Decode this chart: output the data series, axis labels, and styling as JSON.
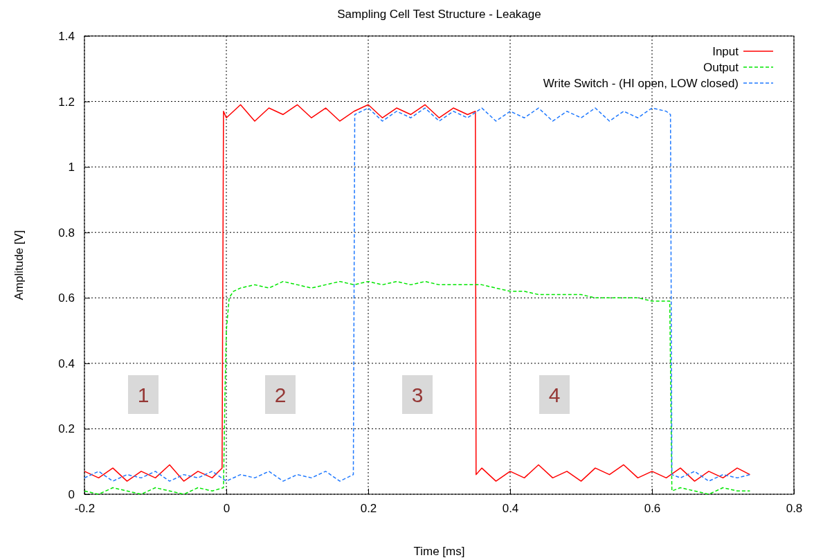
{
  "chart_data": {
    "type": "line",
    "title": "Sampling Cell Test Structure - Leakage",
    "xlabel": "Time [ms]",
    "ylabel": "Amplitude [V]",
    "xlim": [
      -0.2,
      0.8
    ],
    "xticks": [
      -0.2,
      0,
      0.2,
      0.4,
      0.6,
      0.8
    ],
    "ylim": [
      0,
      1.4
    ],
    "yticks": [
      0,
      0.2,
      0.4,
      0.6,
      0.8,
      1,
      1.2,
      1.4
    ],
    "grid": true,
    "legend": "top right",
    "marker": "none",
    "series": [
      {
        "name": "Input",
        "color": "#ff0000",
        "line_style": "solid",
        "x": [
          -0.2,
          -0.18,
          -0.16,
          -0.14,
          -0.12,
          -0.1,
          -0.08,
          -0.06,
          -0.04,
          -0.02,
          -0.006,
          -0.004,
          0,
          0.02,
          0.04,
          0.06,
          0.08,
          0.1,
          0.12,
          0.14,
          0.16,
          0.18,
          0.2,
          0.22,
          0.24,
          0.26,
          0.28,
          0.3,
          0.32,
          0.34,
          0.351,
          0.352,
          0.36,
          0.38,
          0.4,
          0.42,
          0.44,
          0.46,
          0.48,
          0.5,
          0.52,
          0.54,
          0.56,
          0.58,
          0.6,
          0.62,
          0.64,
          0.66,
          0.68,
          0.7,
          0.72,
          0.738
        ],
        "values": [
          0.07,
          0.05,
          0.08,
          0.04,
          0.07,
          0.05,
          0.09,
          0.04,
          0.07,
          0.05,
          0.08,
          1.17,
          1.15,
          1.19,
          1.14,
          1.18,
          1.16,
          1.19,
          1.15,
          1.18,
          1.14,
          1.17,
          1.19,
          1.15,
          1.18,
          1.16,
          1.19,
          1.15,
          1.18,
          1.16,
          1.17,
          0.06,
          0.08,
          0.04,
          0.07,
          0.05,
          0.09,
          0.05,
          0.07,
          0.04,
          0.08,
          0.06,
          0.09,
          0.05,
          0.07,
          0.05,
          0.08,
          0.04,
          0.07,
          0.05,
          0.08,
          0.06
        ]
      },
      {
        "name": "Output",
        "color": "#00e600",
        "line_style": "dashed",
        "x": [
          -0.2,
          -0.18,
          -0.16,
          -0.14,
          -0.12,
          -0.1,
          -0.08,
          -0.06,
          -0.04,
          -0.02,
          -0.004,
          -0.002,
          0,
          0.004,
          0.01,
          0.02,
          0.04,
          0.06,
          0.08,
          0.1,
          0.12,
          0.14,
          0.16,
          0.18,
          0.2,
          0.22,
          0.24,
          0.26,
          0.28,
          0.3,
          0.32,
          0.34,
          0.36,
          0.38,
          0.4,
          0.42,
          0.44,
          0.46,
          0.48,
          0.5,
          0.52,
          0.54,
          0.56,
          0.58,
          0.6,
          0.625,
          0.628,
          0.64,
          0.66,
          0.68,
          0.7,
          0.72,
          0.738
        ],
        "values": [
          0.01,
          0,
          0.02,
          0.01,
          0,
          0.02,
          0.01,
          0,
          0.02,
          0.01,
          0.02,
          0.3,
          0.5,
          0.6,
          0.62,
          0.63,
          0.64,
          0.63,
          0.65,
          0.64,
          0.63,
          0.64,
          0.65,
          0.64,
          0.65,
          0.64,
          0.65,
          0.64,
          0.65,
          0.64,
          0.64,
          0.64,
          0.64,
          0.63,
          0.62,
          0.62,
          0.61,
          0.61,
          0.61,
          0.61,
          0.6,
          0.6,
          0.6,
          0.6,
          0.59,
          0.59,
          0.01,
          0.02,
          0.01,
          0,
          0.02,
          0.01,
          0.01
        ]
      },
      {
        "name": "Write Switch - (HI open, LOW closed)",
        "color": "#1e78ff",
        "line_style": "dashed",
        "x": [
          -0.2,
          -0.18,
          -0.16,
          -0.14,
          -0.12,
          -0.1,
          -0.08,
          -0.06,
          -0.04,
          -0.02,
          0,
          0.02,
          0.04,
          0.06,
          0.08,
          0.1,
          0.12,
          0.14,
          0.16,
          0.179,
          0.181,
          0.2,
          0.22,
          0.24,
          0.26,
          0.28,
          0.3,
          0.32,
          0.34,
          0.36,
          0.38,
          0.4,
          0.42,
          0.44,
          0.46,
          0.48,
          0.5,
          0.52,
          0.54,
          0.56,
          0.58,
          0.6,
          0.62,
          0.626,
          0.628,
          0.64,
          0.66,
          0.68,
          0.7,
          0.72,
          0.738
        ],
        "values": [
          0.05,
          0.07,
          0.04,
          0.06,
          0.05,
          0.07,
          0.04,
          0.06,
          0.05,
          0.07,
          0.04,
          0.06,
          0.05,
          0.07,
          0.04,
          0.06,
          0.05,
          0.07,
          0.04,
          0.06,
          1.16,
          1.18,
          1.14,
          1.17,
          1.15,
          1.18,
          1.14,
          1.17,
          1.15,
          1.18,
          1.14,
          1.17,
          1.15,
          1.18,
          1.14,
          1.17,
          1.15,
          1.18,
          1.14,
          1.17,
          1.15,
          1.18,
          1.17,
          1.16,
          0.06,
          0.05,
          0.07,
          0.04,
          0.06,
          0.05,
          0.06
        ]
      }
    ],
    "annotations": [
      "1",
      "2",
      "3",
      "4"
    ]
  }
}
